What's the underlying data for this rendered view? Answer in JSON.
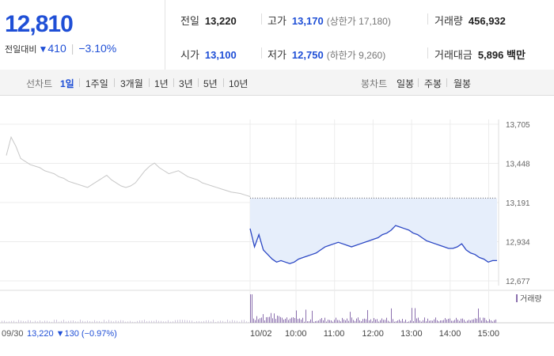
{
  "summary": {
    "price": "12,810",
    "change_label": "전일대비",
    "change_value": "410",
    "change_pct": "−3.10%"
  },
  "stats": {
    "prev_close": {
      "label": "전일",
      "value": "13,220"
    },
    "high": {
      "label": "고가",
      "value": "13,170",
      "limit_label": "상한가",
      "limit_value": "17,180"
    },
    "volume": {
      "label": "거래량",
      "value": "456,932"
    },
    "open": {
      "label": "시가",
      "value": "13,100"
    },
    "low": {
      "label": "저가",
      "value": "12,750",
      "limit_label": "하한가",
      "limit_value": "9,260"
    },
    "turnover": {
      "label": "거래대금",
      "value": "5,896",
      "unit": "백만"
    }
  },
  "line_tabs": {
    "label": "선차트",
    "options": [
      "1일",
      "1주일",
      "3개월",
      "1년",
      "3년",
      "5년",
      "10년"
    ],
    "selected": 0
  },
  "candle_tabs": {
    "label": "봉차트",
    "options": [
      "일봉",
      "주봉",
      "월봉"
    ]
  },
  "colors": {
    "accent_blue": "#1f4fd6",
    "today_line": "#2b47c4",
    "prev_line": "#c7c7c7",
    "fill": "#e6eefb",
    "volume": "#8b6fae"
  },
  "chart_data": {
    "type": "line",
    "y_ticks": [
      "13,705",
      "13,448",
      "13,191",
      "12,934",
      "12,677"
    ],
    "ylim": [
      12677,
      13705
    ],
    "reference_price": 13220,
    "x_ticks": [
      "10/02",
      "10:00",
      "11:00",
      "12:00",
      "13:00",
      "14:00",
      "15:00"
    ],
    "volume_label": "거래량",
    "prev_day_label": "09/30",
    "prev_day_value": "13,220",
    "prev_day_change": "130",
    "prev_day_pct": "(−0.97%)",
    "prev_series": [
      13500,
      13620,
      13560,
      13480,
      13460,
      13440,
      13430,
      13420,
      13400,
      13390,
      13380,
      13360,
      13350,
      13330,
      13320,
      13310,
      13300,
      13290,
      13310,
      13330,
      13350,
      13370,
      13340,
      13320,
      13300,
      13290,
      13300,
      13320,
      13360,
      13400,
      13430,
      13450,
      13420,
      13400,
      13380,
      13390,
      13400,
      13380,
      13360,
      13350,
      13340,
      13320,
      13310,
      13300,
      13290,
      13280,
      13270,
      13260,
      13255,
      13250,
      13240,
      13230
    ],
    "today_series": [
      13020,
      12900,
      12980,
      12880,
      12850,
      12820,
      12800,
      12810,
      12800,
      12790,
      12800,
      12820,
      12830,
      12840,
      12850,
      12860,
      12880,
      12900,
      12910,
      12920,
      12930,
      12920,
      12910,
      12900,
      12910,
      12920,
      12930,
      12940,
      12950,
      12960,
      12980,
      12990,
      13010,
      13040,
      13030,
      13020,
      13010,
      12990,
      12980,
      12960,
      12940,
      12930,
      12920,
      12910,
      12900,
      12890,
      12890,
      12900,
      12920,
      12880,
      12860,
      12850,
      12830,
      12820,
      12800,
      12810,
      12810
    ]
  }
}
